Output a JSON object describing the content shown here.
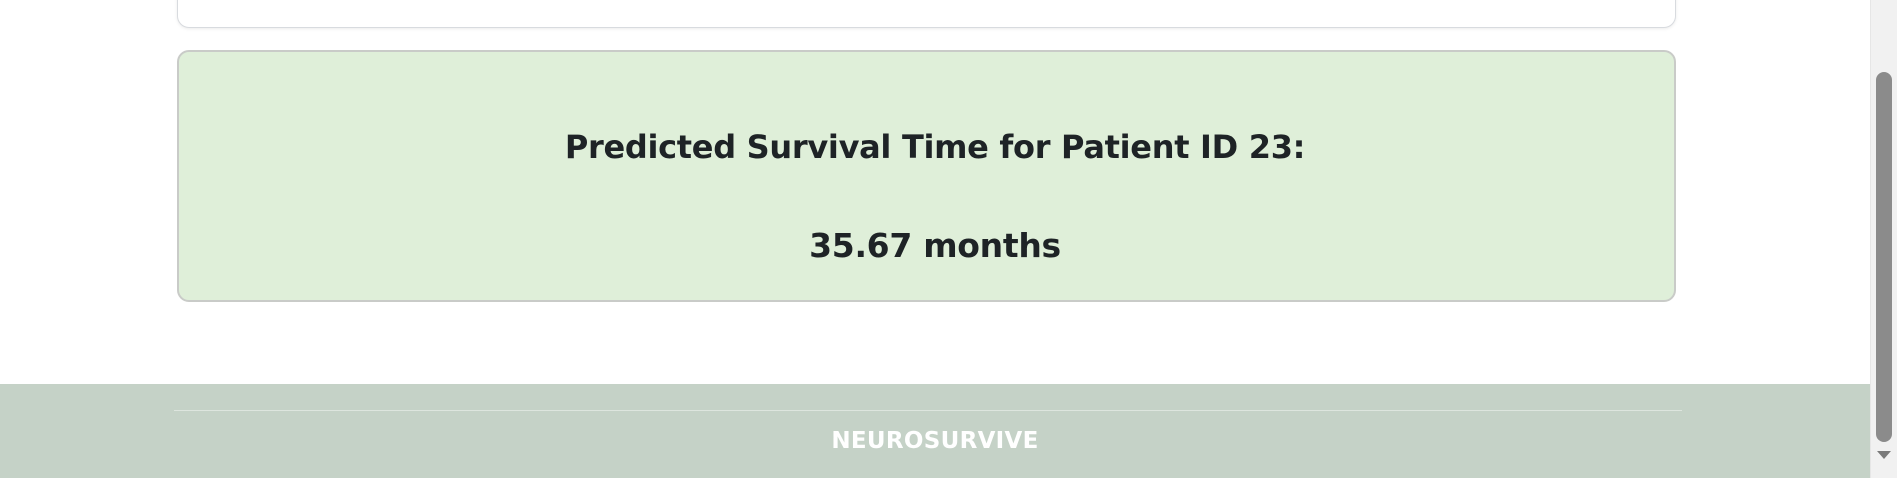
{
  "result": {
    "title": "Predicted Survival Time for Patient ID 23:",
    "value": "35.67 months",
    "background_color": "#dfefd9"
  },
  "footer": {
    "brand": "NEUROSURVIVE",
    "background_color": "#c5d2c7"
  },
  "icons": {
    "scroll_down": "triangle-down"
  }
}
